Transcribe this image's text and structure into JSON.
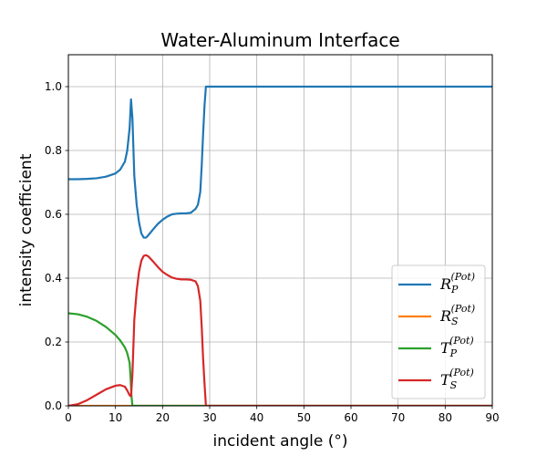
{
  "chart_data": {
    "type": "line",
    "title": "Water-Aluminum Interface",
    "xlabel": "incident angle (°)",
    "ylabel": "intensity coefficient",
    "xlim": [
      0,
      90
    ],
    "ylim": [
      0,
      1.1
    ],
    "xticks": [
      0,
      10,
      20,
      30,
      40,
      50,
      60,
      70,
      80,
      90
    ],
    "yticks": [
      0.0,
      0.2,
      0.4,
      0.6,
      0.8,
      1.0
    ],
    "ytick_labels": [
      "0.0",
      "0.2",
      "0.4",
      "0.6",
      "0.8",
      "1.0"
    ],
    "grid": true,
    "legend_position": "lower-right",
    "series": [
      {
        "name": "R_P^(Pot)",
        "legend": {
          "main": "R",
          "sub": "P",
          "sup": "(Pot)"
        },
        "color": "#1f77b4",
        "x": [
          0,
          2,
          4,
          6,
          8,
          10,
          11,
          12,
          12.5,
          13,
          13.3,
          13.6,
          14,
          14.5,
          15,
          15.5,
          16,
          16.5,
          17,
          18,
          19,
          20,
          21,
          22,
          23,
          24,
          25,
          26,
          27,
          27.5,
          28,
          28.3,
          28.6,
          28.9,
          29.2,
          29.5,
          30,
          40,
          50,
          60,
          70,
          80,
          90
        ],
        "y": [
          0.71,
          0.71,
          0.711,
          0.713,
          0.718,
          0.728,
          0.74,
          0.765,
          0.8,
          0.87,
          0.96,
          0.9,
          0.72,
          0.63,
          0.575,
          0.54,
          0.527,
          0.527,
          0.535,
          0.553,
          0.57,
          0.583,
          0.593,
          0.6,
          0.602,
          0.603,
          0.603,
          0.605,
          0.617,
          0.63,
          0.67,
          0.75,
          0.85,
          0.94,
          1.0,
          1.0,
          1.0,
          1.0,
          1.0,
          1.0,
          1.0,
          1.0,
          1.0
        ]
      },
      {
        "name": "R_S^(Pot)",
        "legend": {
          "main": "R",
          "sub": "S",
          "sup": "(Pot)"
        },
        "color": "#ff7f0e",
        "x": [
          0,
          90
        ],
        "y": [
          0,
          0
        ]
      },
      {
        "name": "T_P^(Pot)",
        "legend": {
          "main": "T",
          "sub": "P",
          "sup": "(Pot)"
        },
        "color": "#2ca02c",
        "x": [
          0,
          2,
          4,
          6,
          8,
          10,
          11,
          12,
          12.5,
          13,
          13.2,
          13.4,
          13.6,
          14,
          90
        ],
        "y": [
          0.29,
          0.287,
          0.279,
          0.266,
          0.247,
          0.222,
          0.205,
          0.183,
          0.165,
          0.135,
          0.09,
          0.03,
          0,
          0,
          0
        ]
      },
      {
        "name": "T_S^(Pot)",
        "legend": {
          "main": "T",
          "sub": "S",
          "sup": "(Pot)"
        },
        "color": "#d62728",
        "x": [
          0,
          2,
          4,
          6,
          8,
          10,
          11,
          12,
          12.5,
          13,
          13.3,
          13.6,
          14,
          14.5,
          15,
          15.5,
          16,
          16.5,
          17,
          18,
          19,
          20,
          21,
          22,
          23,
          24,
          25,
          26,
          27,
          27.5,
          28,
          28.3,
          28.6,
          28.9,
          29.2,
          29.5,
          30,
          90
        ],
        "y": [
          0,
          0.005,
          0.018,
          0.035,
          0.052,
          0.063,
          0.065,
          0.06,
          0.048,
          0.033,
          0.03,
          0.1,
          0.27,
          0.36,
          0.42,
          0.455,
          0.47,
          0.472,
          0.468,
          0.452,
          0.435,
          0.42,
          0.41,
          0.402,
          0.398,
          0.396,
          0.396,
          0.395,
          0.39,
          0.375,
          0.33,
          0.25,
          0.15,
          0.07,
          0.0,
          0.0,
          0.0,
          0.0
        ]
      }
    ]
  }
}
